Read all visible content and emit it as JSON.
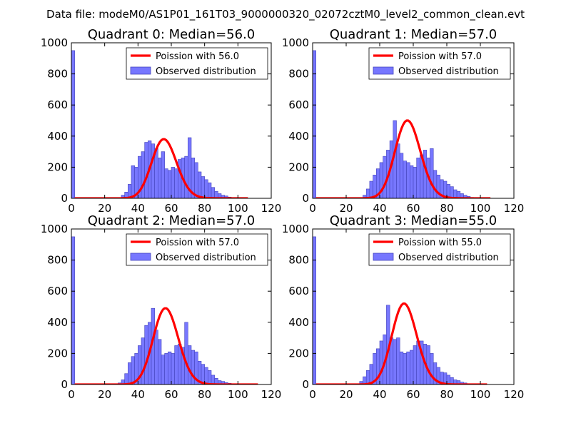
{
  "figure": {
    "suptitle": "Data file: modeM0/AS1P01_161T03_9000000320_02072cztM0_level2_common_clean.evt"
  },
  "chart_data": [
    {
      "type": "bar",
      "title": "Quadrant 0: Median=56.0",
      "xlim": [
        0,
        120
      ],
      "ylim": [
        0,
        1000
      ],
      "xticks": [
        0,
        20,
        40,
        60,
        80,
        100,
        120
      ],
      "yticks": [
        0,
        200,
        400,
        600,
        800,
        1000
      ],
      "legend_position": "top-right",
      "bin_width": 2,
      "series": [
        {
          "name": "Poission with 56.0",
          "kind": "line",
          "color": "#ff0000",
          "mean": 56.0,
          "peak": 380,
          "x_range": [
            2,
            106
          ]
        },
        {
          "name": "Observed distribution",
          "kind": "histogram",
          "color": "#7777ff",
          "bins": [
            {
              "x": 0,
              "y": 950
            },
            {
              "x": 30,
              "y": 20
            },
            {
              "x": 32,
              "y": 40
            },
            {
              "x": 34,
              "y": 90
            },
            {
              "x": 36,
              "y": 210
            },
            {
              "x": 38,
              "y": 200
            },
            {
              "x": 40,
              "y": 270
            },
            {
              "x": 42,
              "y": 300
            },
            {
              "x": 44,
              "y": 360
            },
            {
              "x": 46,
              "y": 370
            },
            {
              "x": 48,
              "y": 350
            },
            {
              "x": 50,
              "y": 320
            },
            {
              "x": 52,
              "y": 260
            },
            {
              "x": 54,
              "y": 300
            },
            {
              "x": 56,
              "y": 190
            },
            {
              "x": 58,
              "y": 180
            },
            {
              "x": 60,
              "y": 200
            },
            {
              "x": 62,
              "y": 190
            },
            {
              "x": 64,
              "y": 250
            },
            {
              "x": 66,
              "y": 260
            },
            {
              "x": 68,
              "y": 270
            },
            {
              "x": 70,
              "y": 390
            },
            {
              "x": 72,
              "y": 260
            },
            {
              "x": 74,
              "y": 230
            },
            {
              "x": 76,
              "y": 170
            },
            {
              "x": 78,
              "y": 140
            },
            {
              "x": 80,
              "y": 120
            },
            {
              "x": 82,
              "y": 100
            },
            {
              "x": 84,
              "y": 70
            },
            {
              "x": 86,
              "y": 45
            },
            {
              "x": 88,
              "y": 30
            },
            {
              "x": 90,
              "y": 20
            },
            {
              "x": 92,
              "y": 15
            },
            {
              "x": 94,
              "y": 8
            },
            {
              "x": 96,
              "y": 5
            },
            {
              "x": 98,
              "y": 3
            }
          ]
        }
      ]
    },
    {
      "type": "bar",
      "title": "Quadrant 1: Median=57.0",
      "xlim": [
        0,
        120
      ],
      "ylim": [
        0,
        1000
      ],
      "xticks": [
        0,
        20,
        40,
        60,
        80,
        100,
        120
      ],
      "yticks": [
        0,
        200,
        400,
        600,
        800,
        1000
      ],
      "legend_position": "top-right",
      "bin_width": 2,
      "series": [
        {
          "name": "Poission with 57.0",
          "kind": "line",
          "color": "#ff0000",
          "mean": 57.0,
          "peak": 500,
          "x_range": [
            2,
            106
          ]
        },
        {
          "name": "Observed distribution",
          "kind": "histogram",
          "color": "#7777ff",
          "bins": [
            {
              "x": 0,
              "y": 950
            },
            {
              "x": 30,
              "y": 20
            },
            {
              "x": 32,
              "y": 60
            },
            {
              "x": 34,
              "y": 110
            },
            {
              "x": 36,
              "y": 150
            },
            {
              "x": 38,
              "y": 190
            },
            {
              "x": 40,
              "y": 230
            },
            {
              "x": 42,
              "y": 270
            },
            {
              "x": 44,
              "y": 310
            },
            {
              "x": 46,
              "y": 370
            },
            {
              "x": 48,
              "y": 500
            },
            {
              "x": 50,
              "y": 350
            },
            {
              "x": 52,
              "y": 290
            },
            {
              "x": 54,
              "y": 240
            },
            {
              "x": 56,
              "y": 230
            },
            {
              "x": 58,
              "y": 210
            },
            {
              "x": 60,
              "y": 200
            },
            {
              "x": 62,
              "y": 260
            },
            {
              "x": 64,
              "y": 280
            },
            {
              "x": 66,
              "y": 310
            },
            {
              "x": 68,
              "y": 260
            },
            {
              "x": 70,
              "y": 320
            },
            {
              "x": 72,
              "y": 180
            },
            {
              "x": 74,
              "y": 150
            },
            {
              "x": 76,
              "y": 120
            },
            {
              "x": 78,
              "y": 110
            },
            {
              "x": 80,
              "y": 90
            },
            {
              "x": 82,
              "y": 75
            },
            {
              "x": 84,
              "y": 55
            },
            {
              "x": 86,
              "y": 45
            },
            {
              "x": 88,
              "y": 30
            },
            {
              "x": 90,
              "y": 20
            },
            {
              "x": 92,
              "y": 12
            },
            {
              "x": 94,
              "y": 6
            },
            {
              "x": 96,
              "y": 3
            }
          ]
        }
      ]
    },
    {
      "type": "bar",
      "title": "Quadrant 2: Median=57.0",
      "xlim": [
        0,
        120
      ],
      "ylim": [
        0,
        1000
      ],
      "xticks": [
        0,
        20,
        40,
        60,
        80,
        100,
        120
      ],
      "yticks": [
        0,
        200,
        400,
        600,
        800,
        1000
      ],
      "legend_position": "top-right",
      "bin_width": 2,
      "series": [
        {
          "name": "Poission with 57.0",
          "kind": "line",
          "color": "#ff0000",
          "mean": 57.0,
          "peak": 490,
          "x_range": [
            2,
            112
          ]
        },
        {
          "name": "Observed distribution",
          "kind": "histogram",
          "color": "#7777ff",
          "bins": [
            {
              "x": 0,
              "y": 950
            },
            {
              "x": 28,
              "y": 10
            },
            {
              "x": 30,
              "y": 30
            },
            {
              "x": 32,
              "y": 70
            },
            {
              "x": 34,
              "y": 140
            },
            {
              "x": 36,
              "y": 180
            },
            {
              "x": 38,
              "y": 200
            },
            {
              "x": 40,
              "y": 250
            },
            {
              "x": 42,
              "y": 300
            },
            {
              "x": 44,
              "y": 380
            },
            {
              "x": 46,
              "y": 400
            },
            {
              "x": 48,
              "y": 490
            },
            {
              "x": 50,
              "y": 350
            },
            {
              "x": 52,
              "y": 290
            },
            {
              "x": 54,
              "y": 190
            },
            {
              "x": 56,
              "y": 200
            },
            {
              "x": 58,
              "y": 210
            },
            {
              "x": 60,
              "y": 200
            },
            {
              "x": 62,
              "y": 250
            },
            {
              "x": 64,
              "y": 260
            },
            {
              "x": 66,
              "y": 240
            },
            {
              "x": 68,
              "y": 400
            },
            {
              "x": 70,
              "y": 250
            },
            {
              "x": 72,
              "y": 220
            },
            {
              "x": 74,
              "y": 210
            },
            {
              "x": 76,
              "y": 150
            },
            {
              "x": 78,
              "y": 130
            },
            {
              "x": 80,
              "y": 110
            },
            {
              "x": 82,
              "y": 90
            },
            {
              "x": 84,
              "y": 60
            },
            {
              "x": 86,
              "y": 40
            },
            {
              "x": 88,
              "y": 25
            },
            {
              "x": 90,
              "y": 20
            },
            {
              "x": 92,
              "y": 12
            },
            {
              "x": 94,
              "y": 8
            },
            {
              "x": 96,
              "y": 5
            }
          ]
        }
      ]
    },
    {
      "type": "bar",
      "title": "Quadrant 3: Median=55.0",
      "xlim": [
        0,
        120
      ],
      "ylim": [
        0,
        1000
      ],
      "xticks": [
        0,
        20,
        40,
        60,
        80,
        100,
        120
      ],
      "yticks": [
        0,
        200,
        400,
        600,
        800,
        1000
      ],
      "legend_position": "top-right",
      "bin_width": 2,
      "series": [
        {
          "name": "Poission with 55.0",
          "kind": "line",
          "color": "#ff0000",
          "mean": 55.0,
          "peak": 520,
          "x_range": [
            2,
            104
          ]
        },
        {
          "name": "Observed distribution",
          "kind": "histogram",
          "color": "#7777ff",
          "bins": [
            {
              "x": 0,
              "y": 950
            },
            {
              "x": 28,
              "y": 20
            },
            {
              "x": 30,
              "y": 50
            },
            {
              "x": 32,
              "y": 90
            },
            {
              "x": 34,
              "y": 130
            },
            {
              "x": 36,
              "y": 200
            },
            {
              "x": 38,
              "y": 230
            },
            {
              "x": 40,
              "y": 280
            },
            {
              "x": 42,
              "y": 320
            },
            {
              "x": 44,
              "y": 510
            },
            {
              "x": 46,
              "y": 300
            },
            {
              "x": 48,
              "y": 290
            },
            {
              "x": 50,
              "y": 300
            },
            {
              "x": 52,
              "y": 210
            },
            {
              "x": 54,
              "y": 200
            },
            {
              "x": 56,
              "y": 210
            },
            {
              "x": 58,
              "y": 220
            },
            {
              "x": 60,
              "y": 250
            },
            {
              "x": 62,
              "y": 280
            },
            {
              "x": 64,
              "y": 280
            },
            {
              "x": 66,
              "y": 260
            },
            {
              "x": 68,
              "y": 250
            },
            {
              "x": 70,
              "y": 200
            },
            {
              "x": 72,
              "y": 140
            },
            {
              "x": 74,
              "y": 110
            },
            {
              "x": 76,
              "y": 80
            },
            {
              "x": 78,
              "y": 75
            },
            {
              "x": 80,
              "y": 60
            },
            {
              "x": 82,
              "y": 45
            },
            {
              "x": 84,
              "y": 30
            },
            {
              "x": 86,
              "y": 25
            },
            {
              "x": 88,
              "y": 15
            },
            {
              "x": 90,
              "y": 10
            },
            {
              "x": 92,
              "y": 5
            }
          ]
        }
      ]
    }
  ]
}
